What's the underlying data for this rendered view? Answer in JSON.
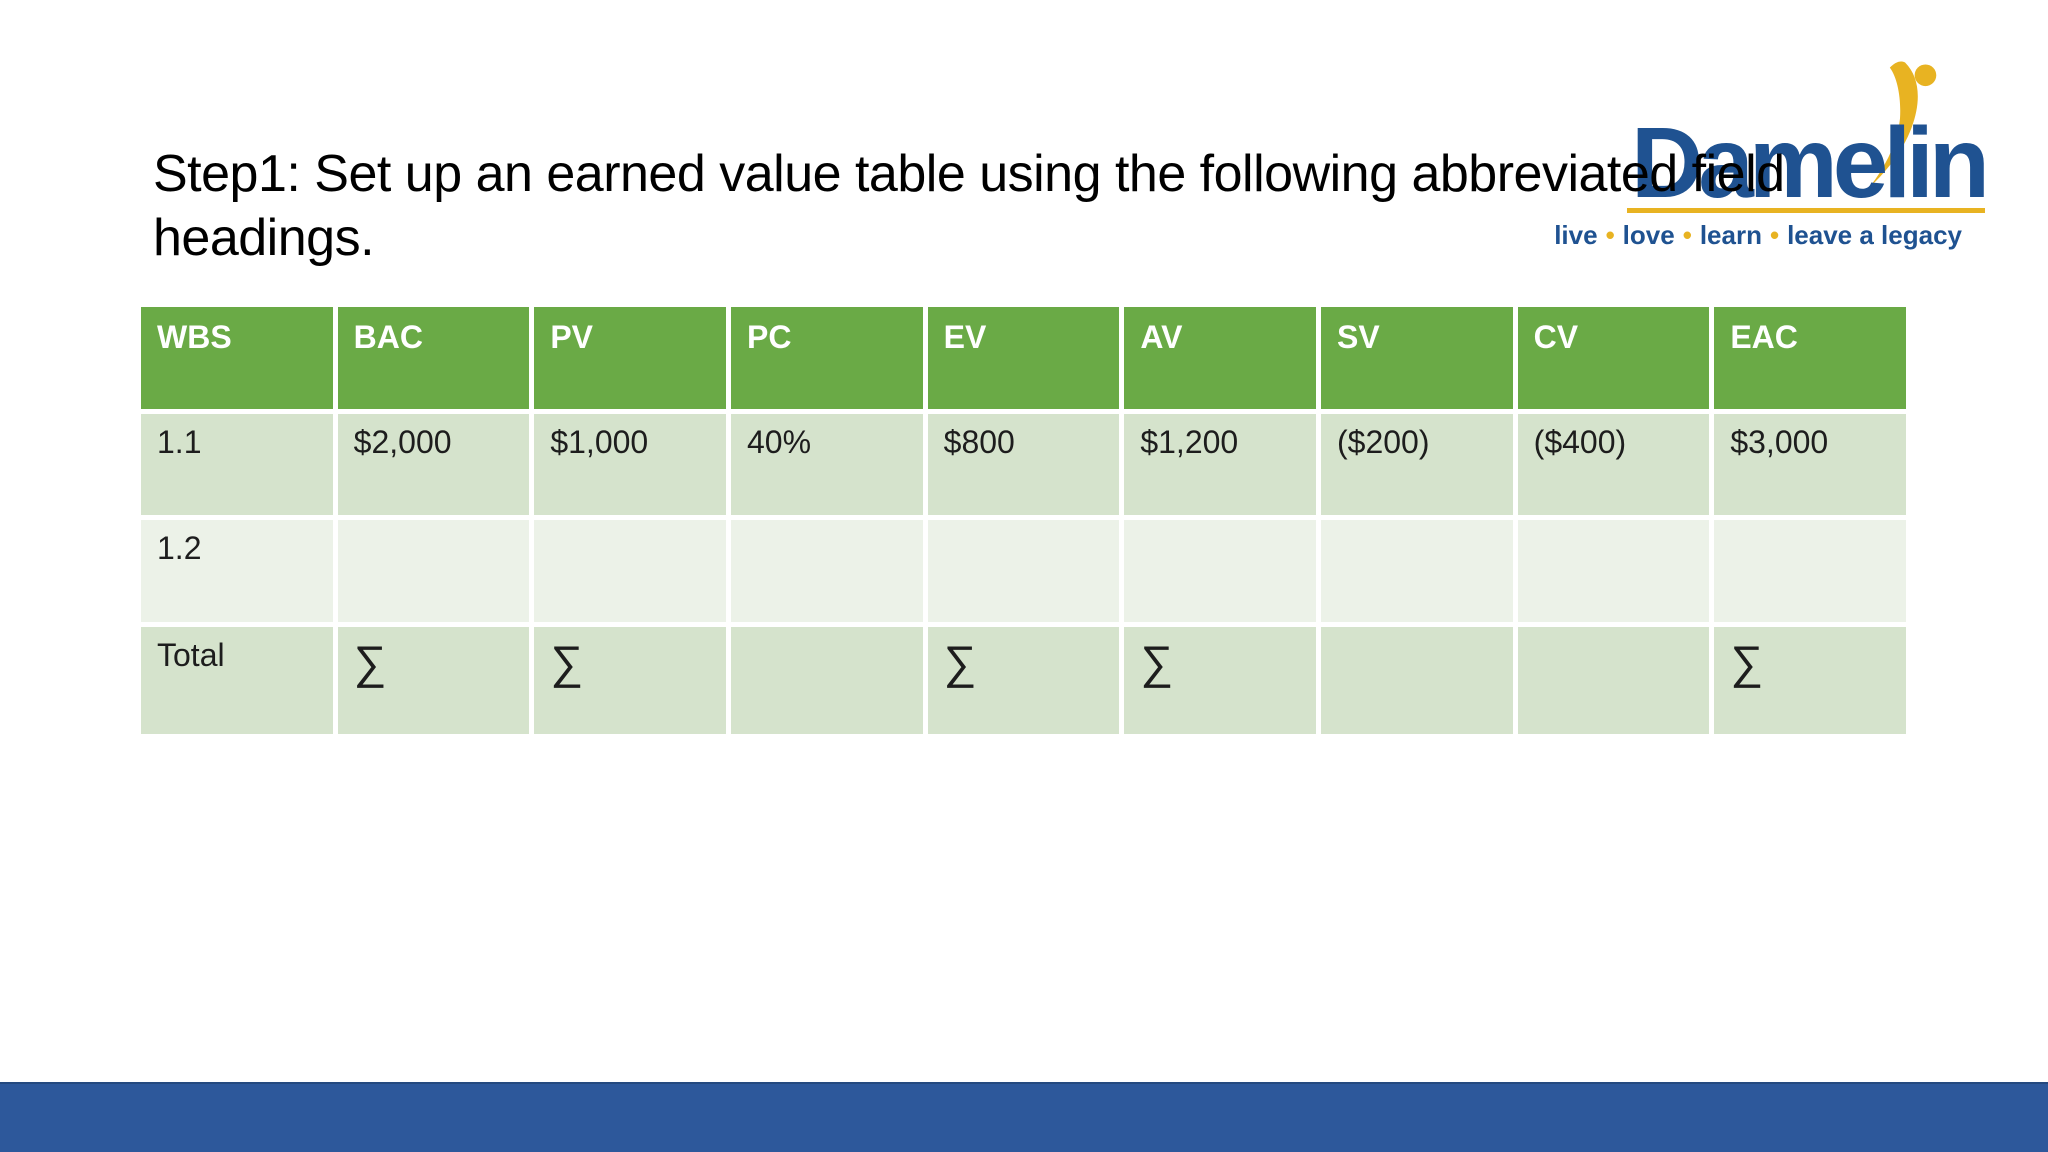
{
  "slide_title": {
    "line1": "Step1: Set up an earned value table using the following abbreviated field",
    "line2": "headings."
  },
  "logo": {
    "wordmark": "Damelin",
    "tagline_words": [
      "live",
      "love",
      "learn",
      "leave a legacy"
    ],
    "separator": "•"
  },
  "table": {
    "headers": [
      "WBS",
      "BAC",
      "PV",
      "PC",
      "EV",
      "AV",
      "SV",
      "CV",
      "EAC"
    ],
    "rows": [
      {
        "band": "dark",
        "cells": [
          "1.1",
          "$2,000",
          "$1,000",
          "40%",
          "$800",
          "$1,200",
          "($200)",
          "($400)",
          "$3,000"
        ]
      },
      {
        "band": "light",
        "cells": [
          "1.2",
          "",
          "",
          "",
          "",
          "",
          "",
          "",
          ""
        ]
      },
      {
        "band": "dark",
        "cells": [
          "Total",
          "∑",
          "∑",
          "",
          "∑",
          "∑",
          "",
          "",
          "∑"
        ]
      }
    ]
  },
  "colors": {
    "header_green": "#6AAA46",
    "band_dark": "#D5E3CC",
    "band_light": "#ECF2E8",
    "footer_blue": "#2D589B",
    "logo_blue": "#1F5291",
    "logo_gold": "#E8B322",
    "title_text": "#000000"
  }
}
